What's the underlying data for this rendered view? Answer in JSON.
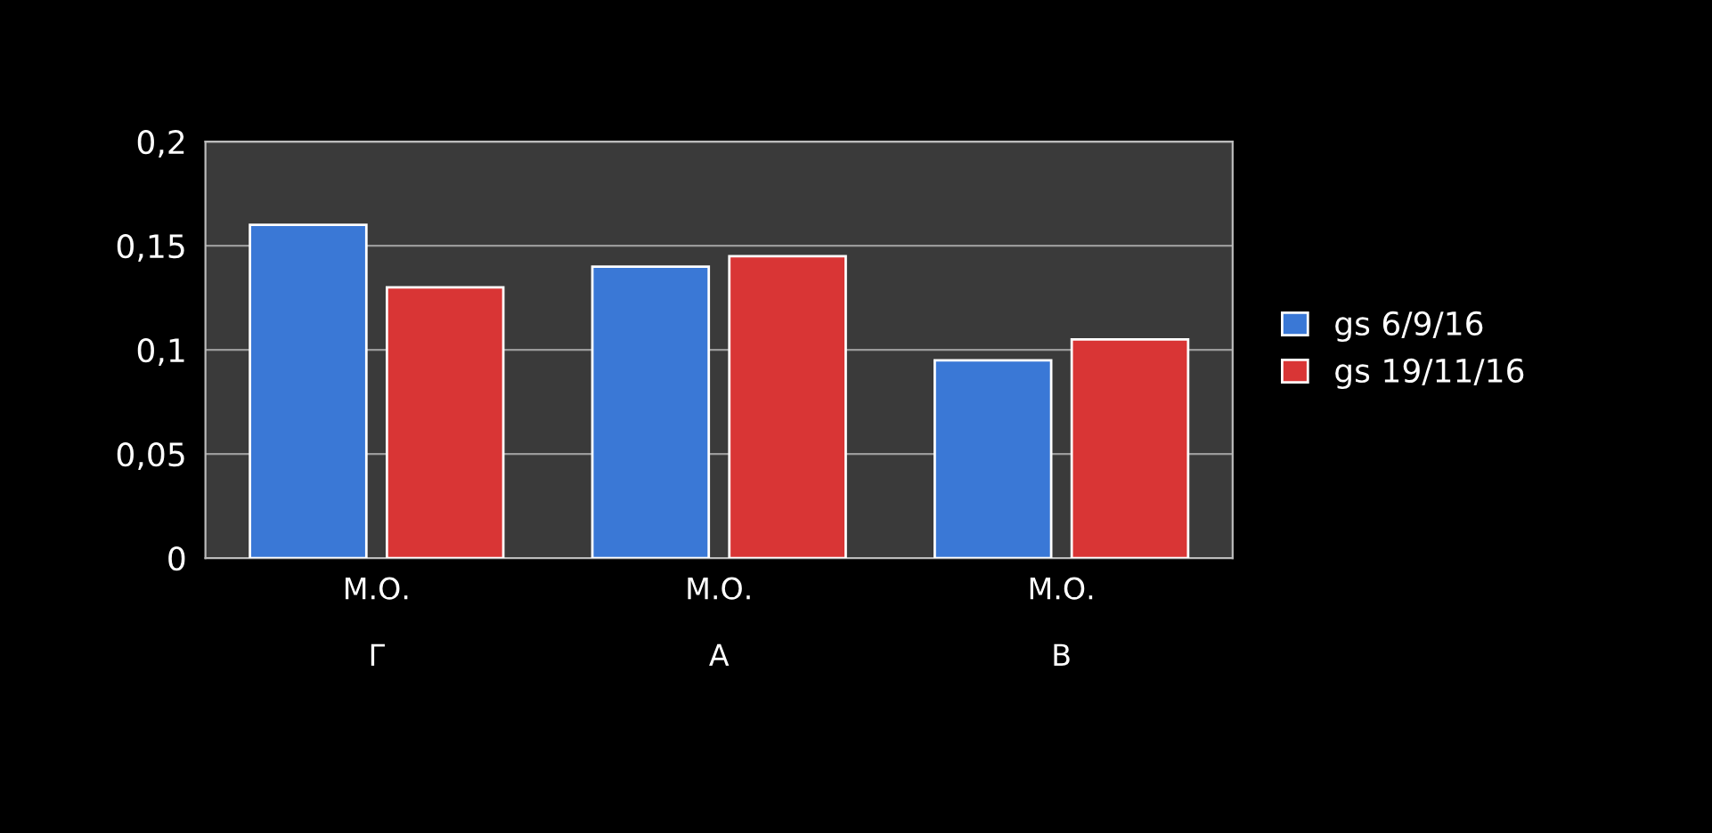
{
  "chart_data": {
    "type": "bar",
    "categories": [
      "Μ.Ο.\n\nΓ",
      "Μ.Ο.\n\nΑ",
      "Μ.Ο.\n\nΒ"
    ],
    "series": [
      {
        "name": "gs 6/9/16",
        "color": "#3a78d6",
        "values": [
          0.16,
          0.14,
          0.095
        ]
      },
      {
        "name": "gs 19/11/16",
        "color": "#d93535",
        "values": [
          0.13,
          0.145,
          0.105
        ]
      }
    ],
    "ylim": [
      0,
      0.2
    ],
    "yticks": [
      {
        "value": 0,
        "label": "0"
      },
      {
        "value": 0.05,
        "label": "0,05"
      },
      {
        "value": 0.1,
        "label": "0,1"
      },
      {
        "value": 0.15,
        "label": "0,15"
      },
      {
        "value": 0.2,
        "label": "0,2"
      }
    ],
    "grid": "y",
    "legend": "right"
  }
}
